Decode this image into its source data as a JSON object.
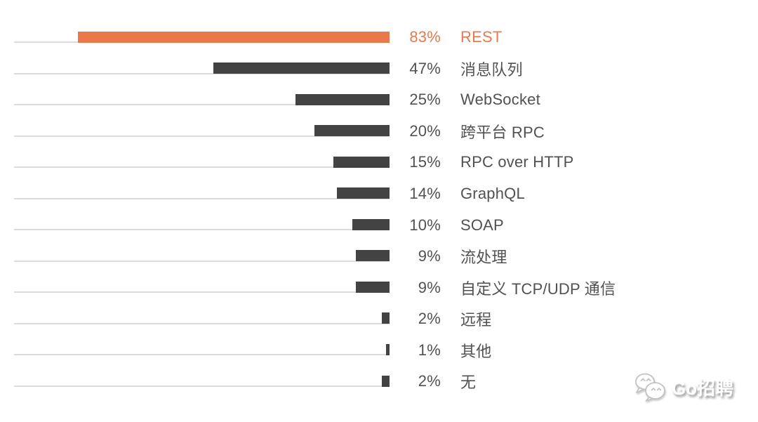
{
  "chart_data": {
    "type": "bar",
    "orientation": "horizontal",
    "title": "",
    "xlabel": "",
    "ylabel": "",
    "xlim": [
      0,
      100
    ],
    "grid": false,
    "value_suffix": "%",
    "legend": null,
    "categories": [
      "REST",
      "消息队列",
      "WebSocket",
      "跨平台 RPC",
      "RPC over HTTP",
      "GraphQL",
      "SOAP",
      "流处理",
      "自定义 TCP/UDP 通信",
      "远程",
      "其他",
      "无"
    ],
    "values": [
      83,
      47,
      25,
      20,
      15,
      14,
      10,
      9,
      9,
      2,
      1,
      2
    ],
    "rows": [
      {
        "label": "REST",
        "value": 83,
        "pct_label": "83%",
        "highlight": true
      },
      {
        "label": "消息队列",
        "value": 47,
        "pct_label": "47%",
        "highlight": false
      },
      {
        "label": "WebSocket",
        "value": 25,
        "pct_label": "25%",
        "highlight": false
      },
      {
        "label": "跨平台 RPC",
        "value": 20,
        "pct_label": "20%",
        "highlight": false
      },
      {
        "label": "RPC over HTTP",
        "value": 15,
        "pct_label": "15%",
        "highlight": false
      },
      {
        "label": "GraphQL",
        "value": 14,
        "pct_label": "14%",
        "highlight": false
      },
      {
        "label": "SOAP",
        "value": 10,
        "pct_label": "10%",
        "highlight": false
      },
      {
        "label": "流处理",
        "value": 9,
        "pct_label": "9%",
        "highlight": false
      },
      {
        "label": "自定义 TCP/UDP 通信",
        "value": 9,
        "pct_label": "9%",
        "highlight": false
      },
      {
        "label": "远程",
        "value": 2,
        "pct_label": "2%",
        "highlight": false
      },
      {
        "label": "其他",
        "value": 1,
        "pct_label": "1%",
        "highlight": false
      },
      {
        "label": "无",
        "value": 2,
        "pct_label": "2%",
        "highlight": false
      }
    ],
    "colors": {
      "highlight": "#e9794b",
      "bar": "#434343",
      "track": "#dbdbdb",
      "text": "#515151"
    }
  },
  "watermark": {
    "text": "Go招聘",
    "icon": "wechat-logo"
  }
}
